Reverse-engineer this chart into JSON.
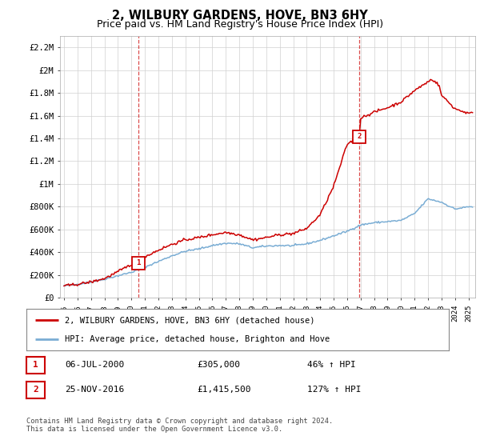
{
  "title": "2, WILBURY GARDENS, HOVE, BN3 6HY",
  "subtitle": "Price paid vs. HM Land Registry's House Price Index (HPI)",
  "ylim": [
    0,
    2300000
  ],
  "yticks": [
    0,
    200000,
    400000,
    600000,
    800000,
    1000000,
    1200000,
    1400000,
    1600000,
    1800000,
    2000000,
    2200000
  ],
  "ytick_labels": [
    "£0",
    "£200K",
    "£400K",
    "£600K",
    "£800K",
    "£1M",
    "£1.2M",
    "£1.4M",
    "£1.6M",
    "£1.8M",
    "£2M",
    "£2.2M"
  ],
  "xlim_start": 1994.7,
  "xlim_end": 2025.5,
  "sale1_x": 2000.52,
  "sale1_y": 305000,
  "sale1_label": "1",
  "sale1_date": "06-JUL-2000",
  "sale1_price": "£305,000",
  "sale1_hpi": "46% ↑ HPI",
  "sale2_x": 2016.91,
  "sale2_y": 1415500,
  "sale2_label": "2",
  "sale2_date": "25-NOV-2016",
  "sale2_price": "£1,415,500",
  "sale2_hpi": "127% ↑ HPI",
  "property_color": "#cc0000",
  "hpi_color": "#7aadd4",
  "legend_property": "2, WILBURY GARDENS, HOVE, BN3 6HY (detached house)",
  "legend_hpi": "HPI: Average price, detached house, Brighton and Hove",
  "footnote1": "Contains HM Land Registry data © Crown copyright and database right 2024.",
  "footnote2": "This data is licensed under the Open Government Licence v3.0.",
  "background_color": "#ffffff",
  "plot_bg_color": "#ffffff",
  "grid_color": "#d0d0d0",
  "title_fontsize": 10.5,
  "subtitle_fontsize": 9,
  "marker_box_color": "#cc0000"
}
